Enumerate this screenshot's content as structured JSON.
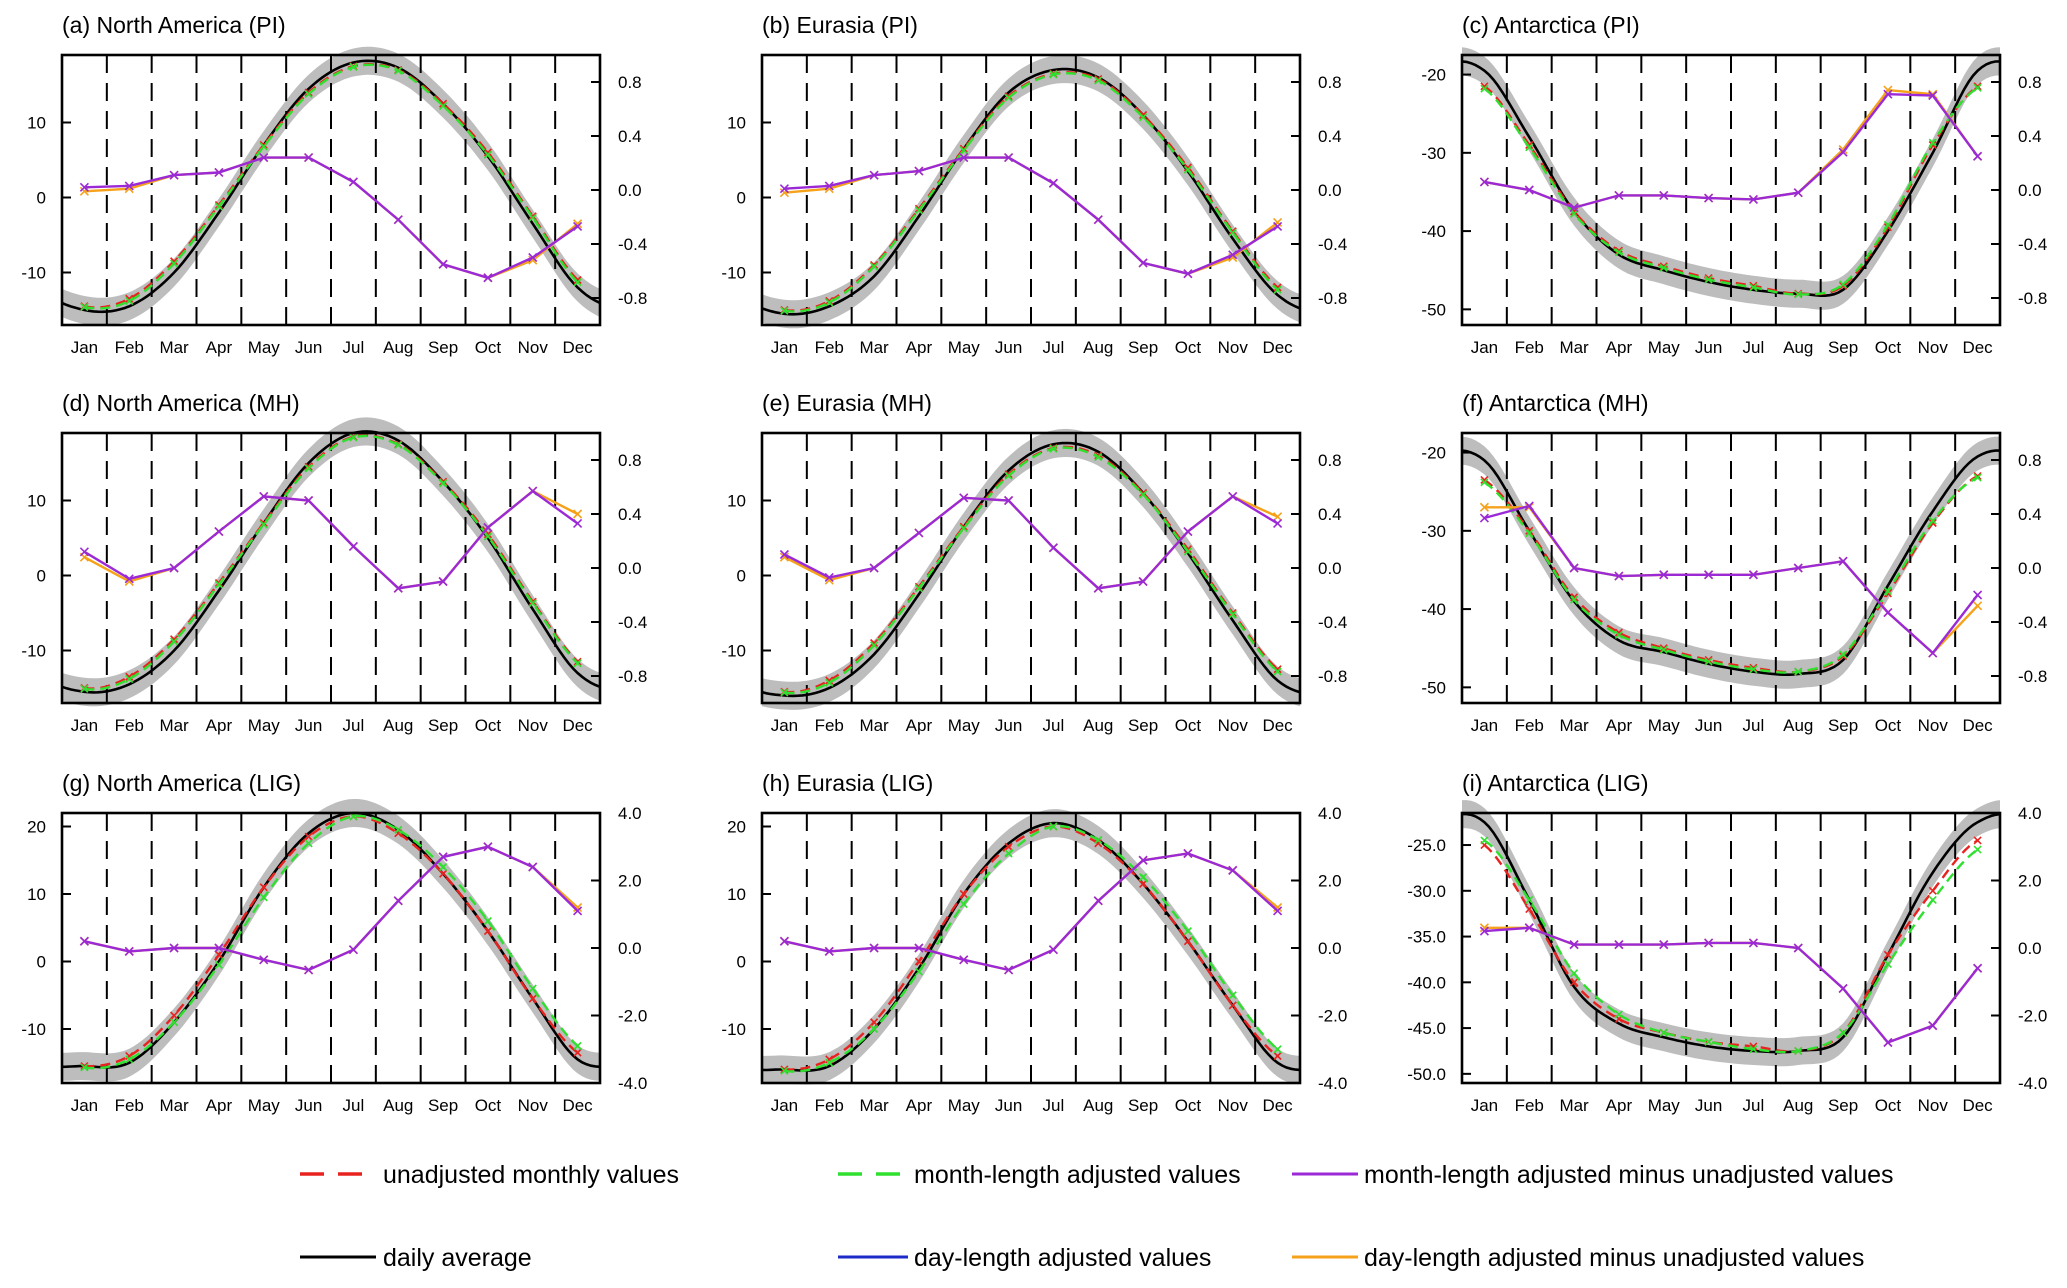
{
  "chart_data": {
    "type": "line",
    "layout": "3x3 grid of panels, legend at bottom",
    "months": [
      "Jan",
      "Feb",
      "Mar",
      "Apr",
      "May",
      "Jun",
      "Jul",
      "Aug",
      "Sep",
      "Oct",
      "Nov",
      "Dec"
    ],
    "legend": [
      {
        "label": "unadjusted monthly values",
        "color": "#e8231f",
        "style": "dashed"
      },
      {
        "label": "month-length adjusted values",
        "color": "#2fe02f",
        "style": "dashed"
      },
      {
        "label": "month-length adjusted minus unadjusted values",
        "color": "#9b2ad6",
        "style": "solid"
      },
      {
        "label": "daily average",
        "color": "#000000",
        "style": "solid"
      },
      {
        "label": "day-length adjusted values",
        "color": "#1c2ac8",
        "style": "solid"
      },
      {
        "label": "day-length adjusted minus unadjusted values",
        "color": "#f5a21a",
        "style": "solid"
      }
    ],
    "panels": [
      {
        "title": "(a) North America (PI)",
        "yleft_range": [
          -17,
          19
        ],
        "yleft_ticks": [
          "10",
          "0",
          "-10"
        ],
        "yleft_tick_values": [
          10,
          0,
          -10
        ],
        "yright_range": [
          -1.0,
          1.0
        ],
        "yright_ticks": [
          "0.8",
          "0.4",
          "0.0",
          "-0.4",
          "-0.8"
        ],
        "yright_tick_values": [
          0.8,
          0.4,
          0.0,
          -0.4,
          -0.8
        ],
        "unadjusted": [
          -14.5,
          -13.5,
          -8.5,
          -1.0,
          7.0,
          14.0,
          17.5,
          17.0,
          12.5,
          6.0,
          -2.5,
          -11.0
        ],
        "adjusted": [
          -14.6,
          -13.8,
          -8.8,
          -1.2,
          6.8,
          13.8,
          17.4,
          16.9,
          12.2,
          5.7,
          -2.7,
          -11.3
        ],
        "daily": [
          -15.0,
          -14.5,
          -10.0,
          -2.0,
          7.0,
          14.5,
          18.0,
          17.3,
          12.5,
          5.5,
          -3.5,
          -12.0
        ],
        "diff_month": [
          0.02,
          0.03,
          0.11,
          0.13,
          0.24,
          0.24,
          0.06,
          -0.22,
          -0.55,
          -0.65,
          -0.5,
          -0.27
        ],
        "diff_day": [
          -0.01,
          0.01,
          0.11,
          0.13,
          0.24,
          0.24,
          0.06,
          -0.22,
          -0.55,
          -0.65,
          -0.52,
          -0.25
        ]
      },
      {
        "title": "(b) Eurasia (PI)",
        "yleft_range": [
          -17,
          19
        ],
        "yleft_ticks": [
          "10",
          "0",
          "-10"
        ],
        "yleft_tick_values": [
          10,
          0,
          -10
        ],
        "yright_range": [
          -1.0,
          1.0
        ],
        "yright_ticks": [
          "0.8",
          "0.4",
          "0.0",
          "-0.4",
          "-0.8"
        ],
        "yright_tick_values": [
          0.8,
          0.4,
          0.0,
          -0.4,
          -0.8
        ],
        "unadjusted": [
          -15.0,
          -13.8,
          -9.0,
          -1.5,
          6.5,
          13.5,
          16.5,
          15.8,
          11.0,
          4.0,
          -4.5,
          -12.0
        ],
        "adjusted": [
          -15.1,
          -14.0,
          -9.2,
          -1.7,
          6.3,
          13.3,
          16.4,
          15.6,
          10.7,
          3.7,
          -4.7,
          -12.3
        ],
        "daily": [
          -15.5,
          -14.5,
          -10.5,
          -2.5,
          6.5,
          14.0,
          17.0,
          16.0,
          11.0,
          3.5,
          -5.5,
          -13.0
        ],
        "diff_month": [
          0.01,
          0.03,
          0.11,
          0.14,
          0.24,
          0.24,
          0.05,
          -0.22,
          -0.54,
          -0.62,
          -0.48,
          -0.27
        ],
        "diff_day": [
          -0.02,
          0.01,
          0.11,
          0.14,
          0.24,
          0.24,
          0.05,
          -0.22,
          -0.54,
          -0.62,
          -0.5,
          -0.24
        ]
      },
      {
        "title": "(c) Antarctica (PI)",
        "yleft_range": [
          -52,
          -17.5
        ],
        "yleft_ticks": [
          "-20",
          "-30",
          "-40",
          "-50"
        ],
        "yleft_tick_values": [
          -20,
          -30,
          -40,
          -50
        ],
        "yright_range": [
          -1.0,
          1.0
        ],
        "yright_ticks": [
          "0.8",
          "0.4",
          "0.0",
          "-0.4",
          "-0.8"
        ],
        "yright_tick_values": [
          0.8,
          0.4,
          0.0,
          -0.4,
          -0.8
        ],
        "unadjusted": [
          -21.5,
          -29.0,
          -37.5,
          -42.5,
          -44.5,
          -46.0,
          -47.0,
          -48.0,
          -47.0,
          -39.5,
          -29.0,
          -21.5
        ],
        "adjusted": [
          -21.8,
          -29.3,
          -37.8,
          -42.7,
          -44.7,
          -46.2,
          -47.2,
          -48.1,
          -46.8,
          -39.2,
          -28.7,
          -21.7
        ],
        "daily": [
          -19.5,
          -28.0,
          -37.5,
          -43.0,
          -45.0,
          -46.5,
          -47.5,
          -48.0,
          -47.5,
          -40.0,
          -30.0,
          -19.5
        ],
        "diff_month": [
          0.06,
          0.0,
          -0.13,
          -0.04,
          -0.04,
          -0.06,
          -0.07,
          -0.02,
          0.28,
          0.71,
          0.7,
          0.25
        ],
        "diff_day": [
          0.06,
          0.0,
          -0.13,
          -0.04,
          -0.04,
          -0.06,
          -0.07,
          -0.02,
          0.3,
          0.74,
          0.71,
          0.25
        ]
      },
      {
        "title": "(d) North America (MH)",
        "yleft_range": [
          -17,
          19
        ],
        "yleft_ticks": [
          "10",
          "0",
          "-10"
        ],
        "yleft_tick_values": [
          10,
          0,
          -10
        ],
        "yright_range": [
          -1.0,
          1.0
        ],
        "yright_ticks": [
          "0.8",
          "0.4",
          "0.0",
          "-0.4",
          "-0.8"
        ],
        "yright_tick_values": [
          0.8,
          0.4,
          0.0,
          -0.4,
          -0.8
        ],
        "unadjusted": [
          -15.0,
          -13.5,
          -8.5,
          -1.0,
          7.0,
          14.5,
          18.5,
          17.5,
          12.5,
          5.5,
          -3.5,
          -11.5
        ],
        "adjusted": [
          -15.1,
          -13.8,
          -8.8,
          -1.2,
          6.8,
          14.3,
          18.4,
          17.4,
          12.3,
          5.2,
          -3.7,
          -11.7
        ],
        "daily": [
          -15.5,
          -14.5,
          -10.0,
          -2.0,
          7.0,
          15.0,
          19.0,
          18.0,
          12.5,
          5.0,
          -4.5,
          -13.0
        ],
        "diff_month": [
          0.12,
          -0.08,
          0.0,
          0.27,
          0.53,
          0.5,
          0.16,
          -0.15,
          -0.1,
          0.3,
          0.57,
          0.33
        ],
        "diff_day": [
          0.08,
          -0.1,
          0.0,
          0.27,
          0.53,
          0.5,
          0.16,
          -0.15,
          -0.1,
          0.3,
          0.57,
          0.4
        ]
      },
      {
        "title": "(e) Eurasia (MH)",
        "yleft_range": [
          -17,
          19
        ],
        "yleft_ticks": [
          "10",
          "0",
          "-10"
        ],
        "yleft_tick_values": [
          10,
          0,
          -10
        ],
        "yright_range": [
          -1.0,
          1.0
        ],
        "yright_ticks": [
          "0.8",
          "0.4",
          "0.0",
          "-0.4",
          "-0.8"
        ],
        "yright_tick_values": [
          0.8,
          0.4,
          0.0,
          -0.4,
          -0.8
        ],
        "unadjusted": [
          -15.5,
          -14.0,
          -9.0,
          -1.5,
          6.5,
          13.5,
          17.0,
          16.0,
          11.0,
          3.5,
          -5.0,
          -12.5
        ],
        "adjusted": [
          -15.6,
          -14.3,
          -9.3,
          -1.7,
          6.3,
          13.3,
          16.9,
          15.8,
          10.8,
          3.2,
          -5.2,
          -12.8
        ],
        "daily": [
          -16.0,
          -15.0,
          -10.5,
          -2.5,
          6.5,
          14.0,
          17.5,
          16.5,
          11.0,
          3.0,
          -6.0,
          -14.0
        ],
        "diff_month": [
          0.1,
          -0.07,
          0.0,
          0.26,
          0.52,
          0.5,
          0.15,
          -0.15,
          -0.1,
          0.27,
          0.53,
          0.33
        ],
        "diff_day": [
          0.08,
          -0.09,
          0.0,
          0.26,
          0.52,
          0.5,
          0.15,
          -0.15,
          -0.1,
          0.27,
          0.53,
          0.38
        ]
      },
      {
        "title": "(f) Antarctica (MH)",
        "yleft_range": [
          -52,
          -17.5
        ],
        "yleft_ticks": [
          "-20",
          "-30",
          "-40",
          "-50"
        ],
        "yleft_tick_values": [
          -20,
          -30,
          -40,
          -50
        ],
        "yright_range": [
          -1.0,
          1.0
        ],
        "yright_ticks": [
          "0.8",
          "0.4",
          "0.0",
          "-0.4",
          "-0.8"
        ],
        "yright_tick_values": [
          0.8,
          0.4,
          0.0,
          -0.4,
          -0.8
        ],
        "unadjusted": [
          -23.5,
          -30.0,
          -38.5,
          -43.0,
          -45.0,
          -46.5,
          -47.5,
          -48.0,
          -46.0,
          -38.0,
          -29.0,
          -23.0
        ],
        "adjusted": [
          -23.8,
          -30.3,
          -38.8,
          -43.3,
          -45.2,
          -46.7,
          -47.7,
          -48.0,
          -45.8,
          -37.7,
          -28.7,
          -23.2
        ],
        "daily": [
          -21.0,
          -30.0,
          -39.0,
          -44.0,
          -45.5,
          -47.0,
          -48.0,
          -48.3,
          -46.5,
          -37.0,
          -27.5,
          -20.5
        ],
        "diff_month": [
          0.37,
          0.46,
          0.0,
          -0.06,
          -0.05,
          -0.05,
          -0.05,
          0.0,
          0.05,
          -0.33,
          -0.63,
          -0.2
        ],
        "diff_day": [
          0.45,
          0.45,
          0.0,
          -0.06,
          -0.05,
          -0.05,
          -0.05,
          0.0,
          0.05,
          -0.33,
          -0.63,
          -0.28
        ]
      },
      {
        "title": "(g) North America (LIG)",
        "yleft_range": [
          -18,
          22
        ],
        "yleft_ticks": [
          "20",
          "10",
          "0",
          "-10"
        ],
        "yleft_tick_values": [
          20,
          10,
          0,
          -10
        ],
        "yright_range": [
          -4.0,
          4.0
        ],
        "yright_ticks": [
          "4.0",
          "2.0",
          "0.0",
          "-2.0",
          "-4.0"
        ],
        "yright_tick_values": [
          4.0,
          2.0,
          0.0,
          -2.0,
          -4.0
        ],
        "unadjusted": [
          -15.5,
          -14.0,
          -8.0,
          1.0,
          11.0,
          18.5,
          21.5,
          19.0,
          13.0,
          4.5,
          -5.5,
          -13.5
        ],
        "adjusted": [
          -15.7,
          -14.5,
          -9.0,
          -0.5,
          9.5,
          17.5,
          21.5,
          19.5,
          14.0,
          6.0,
          -4.0,
          -12.5
        ],
        "daily": [
          -15.5,
          -15.0,
          -9.0,
          0.0,
          11.0,
          19.0,
          22.0,
          19.5,
          13.0,
          4.5,
          -5.5,
          -14.5
        ],
        "diff_month": [
          0.2,
          -0.1,
          0.0,
          0.0,
          -0.35,
          -0.65,
          -0.05,
          1.4,
          2.7,
          3.0,
          2.4,
          1.1
        ],
        "diff_day": [
          0.2,
          -0.1,
          0.0,
          0.0,
          -0.35,
          -0.65,
          -0.05,
          1.4,
          2.7,
          3.0,
          2.4,
          1.2
        ]
      },
      {
        "title": "(h) Eurasia (LIG)",
        "yleft_range": [
          -18,
          22
        ],
        "yleft_ticks": [
          "20",
          "10",
          "0",
          "-10"
        ],
        "yleft_tick_values": [
          20,
          10,
          0,
          -10
        ],
        "yright_range": [
          -4.0,
          4.0
        ],
        "yright_ticks": [
          "4.0",
          "2.0",
          "0.0",
          "-2.0",
          "-4.0"
        ],
        "yright_tick_values": [
          4.0,
          2.0,
          0.0,
          -2.0,
          -4.0
        ],
        "unadjusted": [
          -16.0,
          -14.5,
          -9.0,
          0.0,
          10.0,
          17.0,
          20.0,
          17.5,
          11.5,
          3.0,
          -6.5,
          -14.0
        ],
        "adjusted": [
          -16.2,
          -15.0,
          -10.0,
          -1.5,
          8.5,
          16.0,
          20.0,
          18.0,
          12.5,
          4.5,
          -5.0,
          -13.0
        ],
        "daily": [
          -16.0,
          -15.5,
          -10.0,
          -1.0,
          10.0,
          17.5,
          20.5,
          18.0,
          11.5,
          3.0,
          -6.5,
          -15.0
        ],
        "diff_month": [
          0.2,
          -0.1,
          0.0,
          0.0,
          -0.35,
          -0.65,
          -0.05,
          1.4,
          2.6,
          2.8,
          2.3,
          1.1
        ],
        "diff_day": [
          0.2,
          -0.1,
          0.0,
          0.0,
          -0.35,
          -0.65,
          -0.05,
          1.4,
          2.6,
          2.8,
          2.3,
          1.2
        ]
      },
      {
        "title": "(i) Antarctica (LIG)",
        "yleft_range": [
          -51,
          -21.5
        ],
        "yleft_ticks": [
          "-25.0",
          "-30.0",
          "-35.0",
          "-40.0",
          "-45.0",
          "-50.0"
        ],
        "yleft_tick_values": [
          -25,
          -30,
          -35,
          -40,
          -45,
          -50
        ],
        "yright_range": [
          -4.0,
          4.0
        ],
        "yright_ticks": [
          "4.0",
          "2.0",
          "0.0",
          "-2.0",
          "-4.0"
        ],
        "yright_tick_values": [
          4.0,
          2.0,
          0.0,
          -2.0,
          -4.0
        ],
        "unadjusted": [
          -25.0,
          -32.0,
          -40.0,
          -44.0,
          -45.5,
          -46.5,
          -47.0,
          -47.5,
          -45.5,
          -37.0,
          -30.0,
          -24.5
        ],
        "adjusted": [
          -24.5,
          -31.0,
          -39.0,
          -43.5,
          -45.5,
          -46.5,
          -47.3,
          -47.5,
          -45.5,
          -38.0,
          -31.0,
          -25.5
        ],
        "daily": [
          -22.5,
          -31.0,
          -40.5,
          -44.5,
          -46.0,
          -47.0,
          -47.5,
          -47.5,
          -46.0,
          -37.0,
          -28.0,
          -22.5
        ],
        "diff_month": [
          0.5,
          0.6,
          0.1,
          0.1,
          0.1,
          0.15,
          0.15,
          0.0,
          -1.2,
          -2.8,
          -2.3,
          -0.6
        ],
        "diff_day": [
          0.6,
          0.6,
          0.1,
          0.1,
          0.1,
          0.15,
          0.15,
          0.0,
          -1.2,
          -2.8,
          -2.3,
          -0.6
        ]
      }
    ]
  }
}
